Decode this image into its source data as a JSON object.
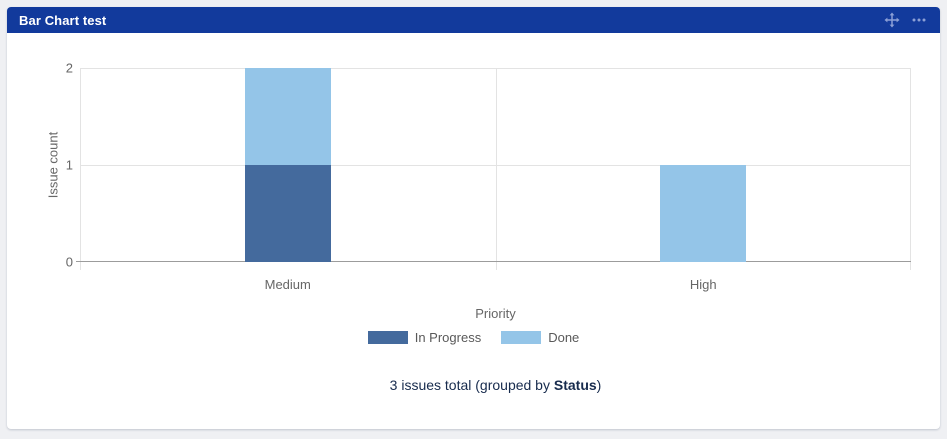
{
  "gadget": {
    "title": "Bar Chart test",
    "header_color": "#123A9C",
    "icon_color": "#8CA0D6",
    "icons": [
      {
        "name": "move-icon",
        "meaning": "drag gadget to move"
      },
      {
        "name": "more-options-icon",
        "meaning": "horizontal ellipsis menu"
      }
    ]
  },
  "chart_data": {
    "type": "bar",
    "stacked": true,
    "categories": [
      "Medium",
      "High"
    ],
    "series": [
      {
        "name": "In Progress",
        "color": "#446A9D",
        "values": [
          1,
          0
        ]
      },
      {
        "name": "Done",
        "color": "#94C5E8",
        "values": [
          1,
          1
        ]
      }
    ],
    "xlabel": "Priority",
    "ylabel": "Issue count",
    "ylim": [
      0,
      2
    ],
    "yticks": [
      0,
      1,
      2
    ],
    "grid": true,
    "legend_position": "bottom"
  },
  "footer": {
    "prefix": "3 issues total (grouped by ",
    "group_by": "Status",
    "suffix": ")"
  }
}
